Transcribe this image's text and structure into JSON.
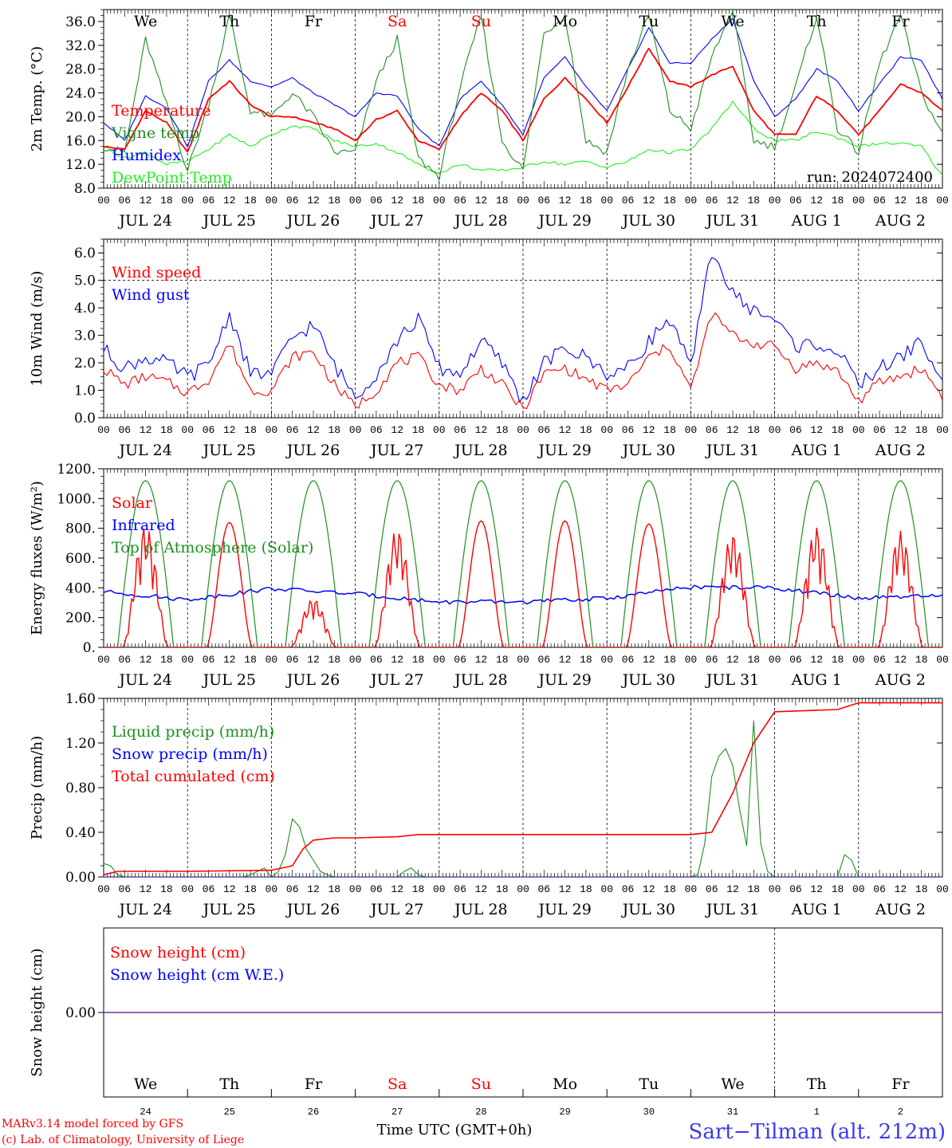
{
  "run_label": "run: 2024072400",
  "x_axis_label": "Time UTC (GMT+0h)",
  "credit_line1": "MARv3.14 model forced by GFS",
  "credit_line2": "(c) Lab. of Climatology, University of Liege",
  "station_label": "Sart−Tilman (alt. 212m)",
  "hour_ticks": [
    "00",
    "06",
    "12",
    "18"
  ],
  "end_hour_tick": "00",
  "date_labels": [
    "JUL 24",
    "JUL 25",
    "JUL 26",
    "JUL 27",
    "JUL 28",
    "JUL 29",
    "JUL 30",
    "JUL 31",
    "AUG  1",
    "AUG  2"
  ],
  "weekday_labels": [
    "We",
    "Th",
    "Fr",
    "Sa",
    "Su",
    "Mo",
    "Tu",
    "We",
    "Th",
    "Fr"
  ],
  "weekend_index": [
    3,
    4
  ],
  "snow_panel_day_numbers": [
    "24",
    "25",
    "26",
    "27",
    "28",
    "29",
    "30",
    "31",
    "1",
    "2"
  ],
  "colors": {
    "temperature": "#ff0000",
    "vigne": "#1f8f1f",
    "humidex": "#0000ff",
    "dewpoint": "#22ee22",
    "snow_line": "#7030a0",
    "weekend": "#ff0000",
    "station": "#3a3af0"
  },
  "chart_data": [
    {
      "type": "line",
      "ylabel": "2m Temp. (°C)",
      "ylim": [
        8,
        38
      ],
      "yticks": [
        "8.0",
        "12.0",
        "16.0",
        "20.0",
        "24.0",
        "28.0",
        "32.0",
        "36.0"
      ],
      "ytick_values": [
        8,
        12,
        16,
        20,
        24,
        28,
        32,
        36
      ],
      "x_unit": "hours since JUL 24 00 UTC",
      "x": [
        0,
        6,
        12,
        18,
        24,
        30,
        36,
        42,
        48,
        54,
        60,
        66,
        72,
        78,
        84,
        90,
        96,
        102,
        108,
        114,
        120,
        126,
        132,
        138,
        144,
        150,
        156,
        162,
        168,
        174,
        180,
        186,
        192,
        198,
        204,
        210,
        216,
        222,
        228,
        234,
        240
      ],
      "series": [
        {
          "name": "Temperature",
          "color_key": "temperature",
          "values": [
            15.0,
            14.5,
            21.0,
            19.0,
            14.0,
            23.0,
            26.0,
            22.0,
            20.0,
            20.0,
            19.0,
            18.0,
            16.0,
            19.5,
            21.0,
            16.0,
            14.5,
            20.0,
            24.0,
            21.0,
            16.0,
            23.0,
            26.5,
            23.0,
            19.0,
            25.0,
            31.5,
            26.0,
            25.0,
            27.0,
            28.5,
            21.0,
            17.0,
            17.0,
            23.5,
            21.0,
            17.0,
            21.0,
            25.5,
            24.0,
            21.0
          ]
        },
        {
          "name": "Vigne temp",
          "color_key": "vigne",
          "values": [
            15.0,
            14.0,
            33.0,
            22.0,
            11.0,
            22.0,
            37.0,
            21.0,
            20.0,
            24.0,
            20.0,
            14.0,
            14.0,
            26.0,
            33.0,
            13.0,
            10.0,
            25.0,
            37.0,
            16.0,
            11.0,
            34.0,
            37.0,
            16.0,
            14.0,
            28.0,
            37.0,
            21.0,
            18.0,
            30.0,
            38.0,
            16.0,
            15.0,
            25.0,
            37.0,
            18.0,
            14.0,
            29.0,
            37.0,
            24.0,
            17.0
          ]
        },
        {
          "name": "Humidex",
          "color_key": "humidex",
          "values": [
            19.0,
            16.0,
            23.5,
            21.5,
            15.0,
            26.0,
            29.5,
            26.0,
            25.0,
            26.5,
            24.0,
            22.0,
            20.0,
            24.0,
            23.5,
            18.0,
            15.0,
            23.0,
            26.0,
            22.0,
            17.0,
            26.5,
            30.0,
            25.0,
            21.0,
            28.0,
            35.0,
            29.0,
            29.0,
            33.0,
            36.5,
            26.0,
            20.0,
            23.0,
            28.0,
            26.0,
            21.0,
            25.5,
            30.0,
            29.5,
            23.0
          ]
        },
        {
          "name": "DewPoint Temp",
          "color_key": "dewpoint",
          "values": [
            15.0,
            13.0,
            14.0,
            12.0,
            12.5,
            14.5,
            17.0,
            15.0,
            17.0,
            18.5,
            18.0,
            16.0,
            15.0,
            15.5,
            14.0,
            12.0,
            10.5,
            12.0,
            11.0,
            11.0,
            11.5,
            12.5,
            12.0,
            12.5,
            11.5,
            12.5,
            14.5,
            14.0,
            14.5,
            18.0,
            22.5,
            18.0,
            16.0,
            16.0,
            17.5,
            16.5,
            15.0,
            15.5,
            15.5,
            15.0,
            10.0
          ]
        }
      ]
    },
    {
      "type": "line",
      "ylabel": "10m Wind (m/s)",
      "ylim": [
        0,
        6.5
      ],
      "yticks": [
        "0.0",
        "1.0",
        "2.0",
        "3.0",
        "4.0",
        "5.0",
        "6.0"
      ],
      "ytick_values": [
        0,
        1,
        2,
        3,
        4,
        5,
        6
      ],
      "x_unit": "hours since JUL 24 00 UTC",
      "reference_line": 5.0,
      "x": [
        0,
        6,
        12,
        18,
        24,
        30,
        36,
        42,
        48,
        54,
        60,
        66,
        72,
        78,
        84,
        90,
        96,
        102,
        108,
        114,
        120,
        126,
        132,
        138,
        144,
        150,
        156,
        162,
        168,
        174,
        180,
        186,
        192,
        198,
        204,
        210,
        216,
        222,
        228,
        234,
        240
      ],
      "series": [
        {
          "name": "Wind speed",
          "color_key": "temperature",
          "values": [
            1.8,
            1.2,
            1.5,
            1.3,
            0.9,
            1.4,
            2.7,
            1.0,
            1.0,
            2.2,
            2.4,
            1.2,
            0.4,
            1.0,
            2.0,
            2.2,
            1.2,
            1.0,
            1.8,
            1.2,
            0.3,
            1.6,
            1.8,
            1.4,
            1.0,
            1.2,
            2.2,
            2.6,
            1.0,
            3.8,
            3.0,
            2.7,
            2.6,
            1.8,
            2.0,
            1.7,
            0.6,
            1.3,
            1.5,
            1.8,
            0.8
          ]
        },
        {
          "name": "Wind gust",
          "color_key": "humidex",
          "values": [
            2.5,
            1.8,
            2.2,
            2.0,
            1.5,
            1.9,
            3.8,
            1.6,
            1.6,
            2.9,
            3.4,
            1.9,
            0.8,
            1.6,
            2.8,
            3.6,
            1.8,
            1.6,
            2.8,
            2.0,
            0.6,
            2.0,
            2.5,
            2.2,
            1.6,
            1.8,
            2.8,
            3.6,
            1.8,
            6.1,
            4.5,
            3.9,
            3.6,
            2.6,
            2.7,
            2.4,
            1.2,
            1.8,
            2.2,
            2.8,
            1.2
          ]
        }
      ]
    },
    {
      "type": "line",
      "ylabel": "Energy fluxes (W/m²)",
      "ylim": [
        0,
        1200
      ],
      "yticks": [
        "0.",
        "200.",
        "400.",
        "600.",
        "800.",
        "1000.",
        "1200."
      ],
      "ytick_values": [
        0,
        200,
        400,
        600,
        800,
        1000,
        1200
      ],
      "x_unit": "hours since JUL 24 00 UTC",
      "daily_toa_peak_wm2": 1120,
      "daily_solar_peak_wm2": [
        820,
        840,
        330,
        800,
        850,
        850,
        830,
        770,
        810,
        780
      ],
      "infrared_x": [
        0,
        24,
        48,
        72,
        96,
        120,
        144,
        168,
        192,
        216,
        240
      ],
      "infrared_values": [
        375,
        320,
        395,
        360,
        305,
        305,
        330,
        405,
        400,
        330,
        345
      ],
      "series": [
        {
          "name": "Solar",
          "color_key": "temperature"
        },
        {
          "name": "Infrared",
          "color_key": "humidex"
        },
        {
          "name": "Top of Atmosphere (Solar)",
          "color_key": "vigne"
        }
      ]
    },
    {
      "type": "line",
      "ylabel": "Precip (mm/h)",
      "ylim": [
        0,
        1.6
      ],
      "yticks": [
        "0.00",
        "0.40",
        "0.80",
        "1.20",
        "1.60"
      ],
      "ytick_values": [
        0,
        0.4,
        0.8,
        1.2,
        1.6
      ],
      "x_unit": "hours since JUL 24 00 UTC",
      "series": [
        {
          "name": "Liquid precip (mm/h)",
          "color_key": "vigne",
          "x": [
            0,
            2,
            4,
            6,
            8,
            10,
            40,
            42,
            44,
            46,
            48,
            50,
            52,
            54,
            56,
            58,
            60,
            62,
            64,
            66,
            68,
            70,
            84,
            86,
            88,
            90,
            92,
            94,
            96,
            168,
            170,
            172,
            174,
            176,
            178,
            180,
            182,
            184,
            186,
            188,
            190,
            192,
            194,
            210,
            212,
            214,
            216,
            240
          ],
          "values": [
            0.12,
            0.1,
            0.02,
            0,
            0,
            0,
            0,
            0.02,
            0.05,
            0.08,
            0,
            0.05,
            0.2,
            0.52,
            0.45,
            0.25,
            0.15,
            0.05,
            0.02,
            0,
            0,
            0,
            0,
            0.05,
            0.08,
            0.02,
            0,
            0,
            0,
            0,
            0.02,
            0.3,
            0.9,
            1.08,
            1.15,
            1.0,
            0.6,
            0.28,
            1.4,
            0.3,
            0.05,
            0,
            0,
            0,
            0.2,
            0.15,
            0,
            0
          ]
        },
        {
          "name": "Snow precip (mm/h)",
          "color_key": "humidex",
          "x": [
            0,
            240
          ],
          "values": [
            0,
            0
          ]
        },
        {
          "name": "Total cumulated (cm)",
          "color_key": "temperature",
          "x": [
            0,
            4,
            24,
            48,
            54,
            57,
            60,
            66,
            72,
            84,
            90,
            96,
            120,
            150,
            168,
            174,
            180,
            186,
            192,
            210,
            216,
            240
          ],
          "values": [
            0.02,
            0.05,
            0.05,
            0.06,
            0.1,
            0.25,
            0.33,
            0.35,
            0.35,
            0.36,
            0.38,
            0.38,
            0.38,
            0.38,
            0.38,
            0.4,
            0.75,
            1.2,
            1.48,
            1.5,
            1.56,
            1.56
          ]
        }
      ]
    },
    {
      "type": "line",
      "ylabel": "Snow height (cm)",
      "yticks": [
        "0.00"
      ],
      "x_unit": "hours since JUL 24 00 UTC",
      "series": [
        {
          "name": "Snow height (cm)",
          "color_key": "temperature",
          "values": [
            0,
            0
          ]
        },
        {
          "name": "Snow height (cm W.E.)",
          "color_key": "humidex",
          "values": [
            0,
            0
          ]
        }
      ]
    }
  ]
}
